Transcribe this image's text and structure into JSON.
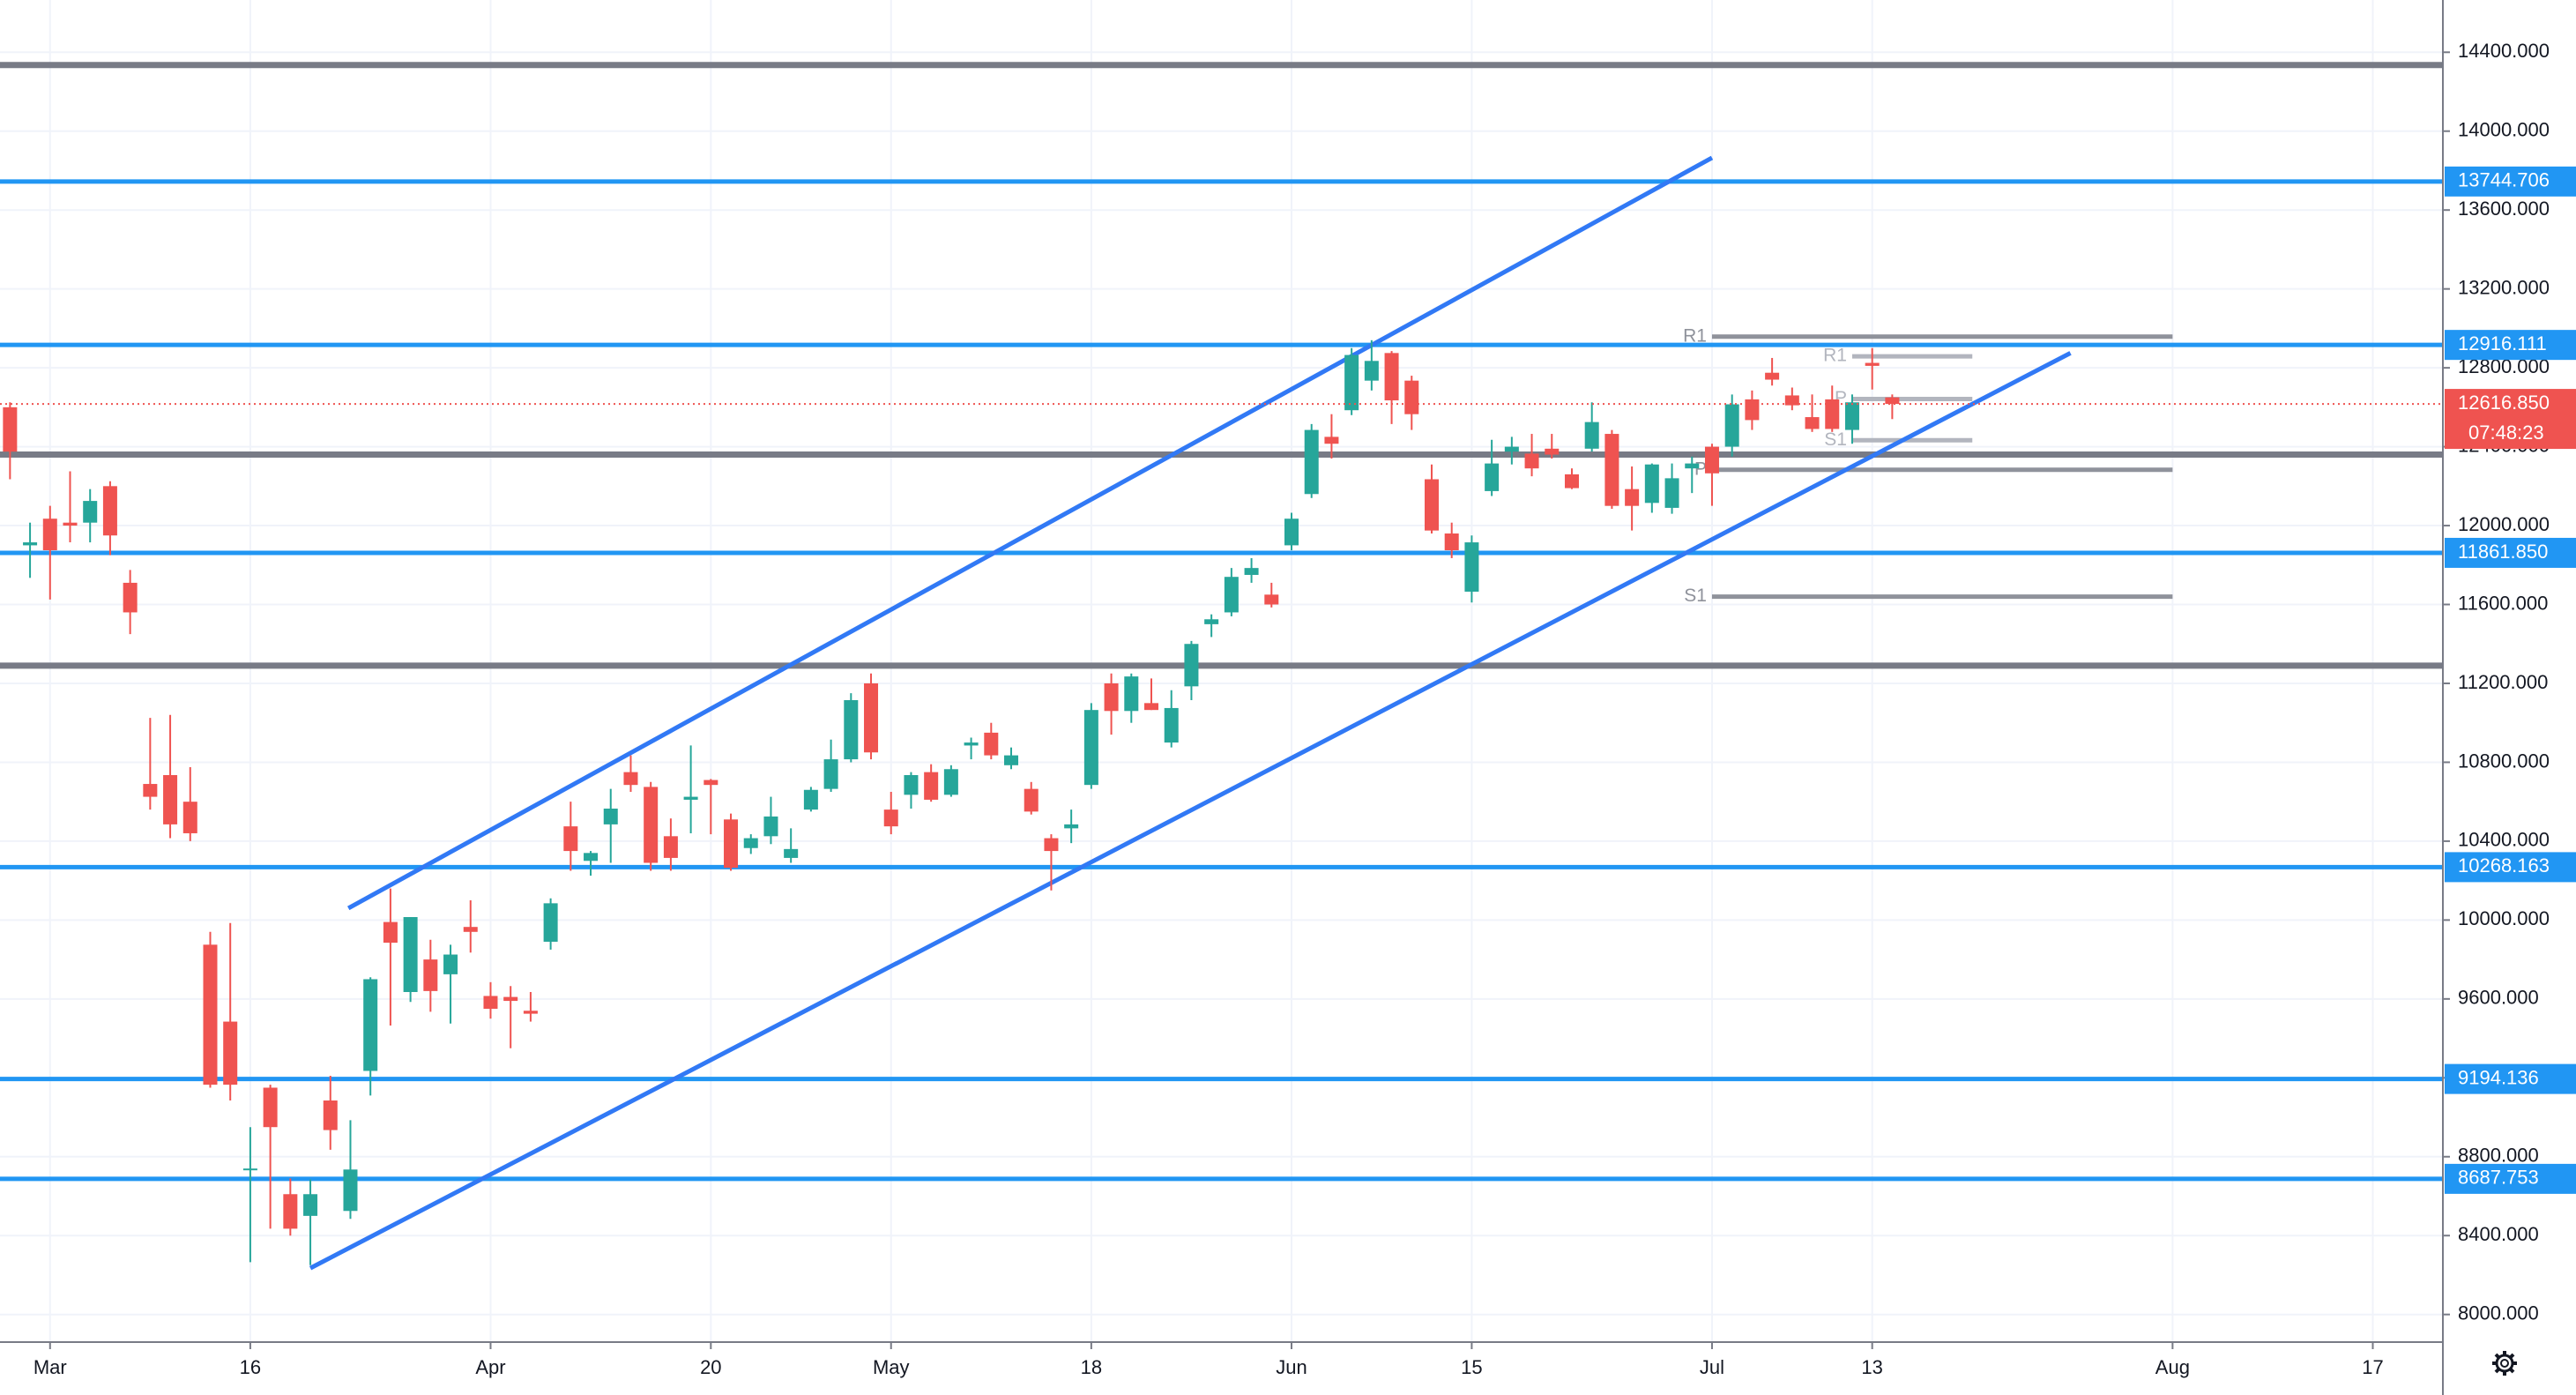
{
  "chart_data": {
    "type": "candlestick",
    "categories": [
      null,
      null,
      "Mar",
      null,
      null,
      null,
      null,
      null,
      null,
      null,
      null,
      null,
      "16",
      null,
      null,
      null,
      null,
      null,
      null,
      null,
      null,
      null,
      null,
      null,
      "Apr",
      null,
      null,
      null,
      null,
      null,
      null,
      null,
      null,
      null,
      null,
      "20",
      null,
      null,
      null,
      null,
      null,
      null,
      null,
      null,
      "May",
      null,
      null,
      null,
      null,
      null,
      null,
      null,
      null,
      null,
      "18",
      null,
      null,
      null,
      null,
      null,
      null,
      null,
      null,
      null,
      "Jun",
      null,
      null,
      null,
      null,
      null,
      null,
      null,
      null,
      "15",
      null,
      null,
      null,
      null,
      null,
      null,
      null,
      null,
      null,
      null,
      null,
      "Jul",
      null,
      null,
      null,
      null,
      null,
      null,
      null,
      "13",
      null,
      null,
      null,
      null,
      null,
      null,
      null,
      null,
      null,
      null,
      null,
      null,
      null,
      null,
      "Aug",
      null,
      null,
      null,
      null,
      null,
      null,
      null,
      null,
      null,
      "17",
      null,
      null,
      null
    ],
    "open": [
      12600,
      11900,
      12035,
      12015,
      12015,
      12200,
      11710,
      10690,
      10735,
      10600,
      9875,
      9485,
      8735,
      9150,
      8610,
      8500,
      9085,
      8525,
      9235,
      9990,
      9635,
      9800,
      9725,
      9965,
      9615,
      9610,
      9540,
      9890,
      10475,
      10300,
      10485,
      10750,
      10675,
      10425,
      10610,
      10710,
      10510,
      10365,
      10425,
      10315,
      10560,
      10665,
      10815,
      11200,
      10560,
      10635,
      10750,
      10635,
      10885,
      10950,
      10785,
      10665,
      10415,
      10465,
      10685,
      11200,
      11060,
      11100,
      10900,
      11185,
      11500,
      11560,
      11750,
      11650,
      11900,
      12160,
      12450,
      12585,
      12735,
      12875,
      12735,
      12235,
      11960,
      11665,
      12175,
      12375,
      12365,
      12390,
      12260,
      12390,
      12465,
      12185,
      12115,
      12090,
      12290,
      12400,
      12400,
      12640,
      12775,
      12660,
      12550,
      12640,
      12485,
      12825,
      12650,
      null,
      null,
      null,
      null,
      null,
      null,
      null,
      null,
      null,
      null,
      null,
      null,
      null,
      null,
      null,
      null,
      null,
      null,
      null,
      null,
      null,
      null,
      null,
      null,
      null,
      null,
      null
    ],
    "high": [
      12625,
      12015,
      12100,
      12275,
      12185,
      12225,
      11775,
      11025,
      11040,
      10775,
      9940,
      9985,
      8950,
      9165,
      8690,
      8685,
      9210,
      8985,
      9710,
      10160,
      10015,
      9900,
      9875,
      10100,
      9685,
      9665,
      9635,
      10110,
      10600,
      10350,
      10665,
      10835,
      10700,
      10515,
      10885,
      10715,
      10540,
      10435,
      10625,
      10465,
      10675,
      10915,
      11150,
      11250,
      10650,
      10750,
      10790,
      10785,
      10925,
      11000,
      10875,
      10700,
      10435,
      10560,
      11100,
      11250,
      11250,
      11225,
      11165,
      11415,
      11550,
      11785,
      11835,
      11710,
      12065,
      12515,
      12565,
      12900,
      12940,
      12885,
      12760,
      12310,
      12015,
      11950,
      12435,
      12450,
      12465,
      12465,
      12290,
      12625,
      12485,
      12300,
      12315,
      12315,
      12350,
      12415,
      12665,
      12685,
      12850,
      12700,
      12665,
      12710,
      12665,
      12900,
      12665,
      null,
      null,
      null,
      null,
      null,
      null,
      null,
      null,
      null,
      null,
      null,
      null,
      null,
      null,
      null,
      null,
      null,
      null,
      null,
      null,
      null,
      null,
      null,
      null,
      null,
      null,
      null
    ],
    "low": [
      12235,
      11735,
      11625,
      11915,
      11915,
      11850,
      11450,
      10560,
      10415,
      10400,
      9150,
      9085,
      8265,
      8435,
      8400,
      8250,
      8835,
      8485,
      9110,
      9465,
      9585,
      9535,
      9475,
      9835,
      9500,
      9350,
      9485,
      9850,
      10250,
      10225,
      10290,
      10650,
      10250,
      10250,
      10440,
      10435,
      10250,
      10335,
      10385,
      10290,
      10550,
      10650,
      10800,
      10815,
      10435,
      10565,
      10600,
      10625,
      10815,
      10815,
      10765,
      10535,
      10150,
      10390,
      10665,
      10940,
      11000,
      11065,
      10875,
      11115,
      11435,
      11540,
      11710,
      11585,
      11875,
      12140,
      12340,
      12560,
      12685,
      12515,
      12485,
      11960,
      11835,
      11610,
      12150,
      12310,
      12250,
      12340,
      12185,
      12375,
      12085,
      11975,
      12065,
      12060,
      12165,
      12100,
      12350,
      12485,
      12710,
      12585,
      12475,
      12475,
      12415,
      12690,
      12540,
      null,
      null,
      null,
      null,
      null,
      null,
      null,
      null,
      null,
      null,
      null,
      null,
      null,
      null,
      null,
      null,
      null,
      null,
      null,
      null,
      null,
      null,
      null,
      null,
      null,
      null,
      null
    ],
    "close": [
      12375,
      11915,
      11875,
      12000,
      12125,
      11950,
      11560,
      10625,
      10485,
      10440,
      9165,
      9165,
      8740,
      8950,
      8435,
      8610,
      8935,
      8735,
      9700,
      9885,
      10015,
      9640,
      9825,
      9940,
      9550,
      9590,
      9525,
      10085,
      10350,
      10340,
      10565,
      10685,
      10290,
      10315,
      10625,
      10685,
      10265,
      10415,
      10525,
      10360,
      10660,
      10815,
      11115,
      10850,
      10475,
      10735,
      10610,
      10765,
      10900,
      10835,
      10835,
      10550,
      10350,
      10485,
      11065,
      11060,
      11235,
      11065,
      11075,
      11400,
      11525,
      11740,
      11785,
      11600,
      12035,
      12485,
      12415,
      12865,
      12835,
      12635,
      12565,
      11975,
      11875,
      11915,
      12315,
      12400,
      12290,
      12360,
      12190,
      12525,
      12100,
      12100,
      12310,
      12240,
      12315,
      12265,
      12615,
      12535,
      12740,
      12610,
      12490,
      12490,
      12625,
      12810,
      12616.85,
      null,
      null,
      null,
      null,
      null,
      null,
      null,
      null,
      null,
      null,
      null,
      null,
      null,
      null,
      null,
      null,
      null,
      null,
      null,
      null,
      null,
      null,
      null,
      null,
      null,
      null,
      null
    ],
    "up_color": "#26a69a",
    "down_color": "#ef5350",
    "ylim": [
      7860,
      14665
    ],
    "yticks": [
      {
        "value": 14400,
        "label": "14400.000"
      },
      {
        "value": 14000,
        "label": "14000.000"
      },
      {
        "value": 13600,
        "label": "13600.000"
      },
      {
        "value": 13200,
        "label": "13200.000"
      },
      {
        "value": 12800,
        "label": "12800.000"
      },
      {
        "value": 12400,
        "label": "12400.000"
      },
      {
        "value": 12000,
        "label": "12000.000"
      },
      {
        "value": 11600,
        "label": "11600.000"
      },
      {
        "value": 11200,
        "label": "11200.000"
      },
      {
        "value": 10800,
        "label": "10800.000"
      },
      {
        "value": 10400,
        "label": "10400.000"
      },
      {
        "value": 10000,
        "label": "10000.000"
      },
      {
        "value": 9600,
        "label": "9600.000"
      },
      {
        "value": 9200,
        "label": "9200.000"
      },
      {
        "value": 8800,
        "label": "8800.000"
      },
      {
        "value": 8400,
        "label": "8400.000"
      },
      {
        "value": 8000,
        "label": "8000.000"
      }
    ],
    "grid": true,
    "levels": [
      {
        "value": 14335,
        "color": "#787b86"
      },
      {
        "value": 13744.706,
        "label": "13744.706",
        "color": "#2196f3"
      },
      {
        "value": 12916.111,
        "label": "12916.111",
        "color": "#2196f3"
      },
      {
        "value": 12360,
        "color": "#787b86"
      },
      {
        "value": 11861.85,
        "label": "11861.850",
        "color": "#2196f3"
      },
      {
        "value": 11290,
        "color": "#787b86"
      },
      {
        "value": 10268.163,
        "label": "10268.163",
        "color": "#2196f3"
      },
      {
        "value": 9194.136,
        "label": "9194.136",
        "color": "#2196f3"
      },
      {
        "value": 8687.753,
        "label": "8687.753",
        "color": "#2196f3"
      }
    ],
    "trendlines": [
      {
        "x": [
          16.9,
          85
        ],
        "y": [
          10060,
          13865
        ],
        "color": "#3179f5"
      },
      {
        "x": [
          15,
          102.9
        ],
        "y": [
          8235,
          12875
        ],
        "color": "#3179f5"
      }
    ],
    "pivots": [
      {
        "x": [
          85,
          108
        ],
        "color": "#8f929b",
        "levels": [
          {
            "name": "R1",
            "value": 12958
          },
          {
            "name": "P",
            "value": 12283
          },
          {
            "name": "S1",
            "value": 11640
          }
        ]
      },
      {
        "x": [
          92,
          98
        ],
        "color": "#b2b5be",
        "levels": [
          {
            "name": "R1",
            "value": 12858
          },
          {
            "name": "P",
            "value": 12642
          },
          {
            "name": "S1",
            "value": 12433
          }
        ]
      }
    ],
    "last_price_label": "12616.850",
    "countdown": "07:48:23"
  }
}
